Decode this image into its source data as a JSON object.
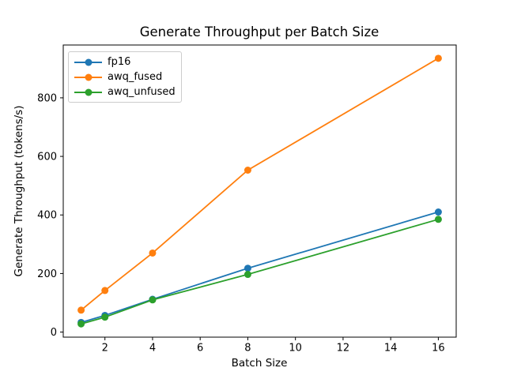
{
  "chart_data": {
    "type": "line",
    "title": "Generate Throughput per Batch Size",
    "xlabel": "Batch Size",
    "ylabel": "Generate Throughput (tokens/s)",
    "x": [
      1,
      2,
      4,
      8,
      16
    ],
    "series": [
      {
        "name": "fp16",
        "color": "#1f77b4",
        "values": [
          33,
          57,
          112,
          218,
          410
        ]
      },
      {
        "name": "awq_fused",
        "color": "#ff7f0e",
        "values": [
          75,
          142,
          270,
          553,
          935
        ]
      },
      {
        "name": "awq_unfused",
        "color": "#2ca02c",
        "values": [
          28,
          51,
          110,
          197,
          385
        ]
      }
    ],
    "xticks": [
      2,
      4,
      6,
      8,
      10,
      12,
      14,
      16
    ],
    "yticks": [
      0,
      200,
      400,
      600,
      800
    ],
    "xlim": [
      0.25,
      16.75
    ],
    "ylim": [
      -17.3,
      980.4
    ],
    "grid": false,
    "legend_position": "upper left",
    "marker": "circle",
    "spine_color": "#000000",
    "background_color": "#ffffff"
  }
}
